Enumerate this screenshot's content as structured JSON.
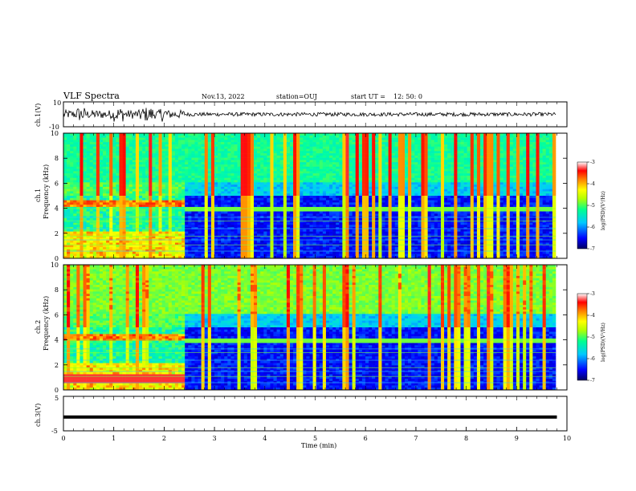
{
  "header": {
    "title": "VLF Spectra",
    "date": "Nov.13, 2022",
    "station": "station=OUJ",
    "start_ut_label": "start  UT  =",
    "start_ut_value": "12: 50: 0"
  },
  "colors": {
    "colormap": [
      "#000080",
      "#0000ff",
      "#00c8ff",
      "#00ffa0",
      "#b4ff00",
      "#ffff00",
      "#ff8000",
      "#ff0000",
      "#ffffff"
    ],
    "trace": "#000000"
  },
  "chart_data": [
    {
      "type": "line",
      "panel": "ch1-waveform",
      "ylabel": "ch.1(V)",
      "ylim": [
        -10,
        10
      ],
      "yticks": [
        "10",
        "-10"
      ],
      "xlim": [
        0,
        10
      ],
      "note_amplitude_v": {
        "t0_to_2.4min": 3.5,
        "t2.4_to_9.8min": 1.5
      }
    },
    {
      "type": "heatmap",
      "panel": "ch1-spectrogram",
      "ylabel_top": "ch.1",
      "ylabel": "Frequency  (kHz)",
      "ylim": [
        0,
        10
      ],
      "yticks": [
        "10",
        "8",
        "6",
        "4",
        "2",
        "0"
      ],
      "xlim": [
        0,
        10
      ],
      "data_end_min": 9.8,
      "regime_change_min": 2.4,
      "colorbar": {
        "label": "log(PSD)(V²/Hz)",
        "ticks": [
          "-3",
          "-4",
          "-5",
          "-6",
          "-7"
        ],
        "range": [
          -7,
          -3
        ]
      }
    },
    {
      "type": "heatmap",
      "panel": "ch2-spectrogram",
      "ylabel_top": "ch.2",
      "ylabel": "Frequency  (kHz)",
      "ylim": [
        0,
        10
      ],
      "yticks": [
        "10",
        "8",
        "6",
        "4",
        "2",
        "0"
      ],
      "xlim": [
        0,
        10
      ],
      "data_end_min": 9.8,
      "regime_change_min": 2.4,
      "colorbar": {
        "label": "log(PSD)(V²/Hz)",
        "ticks": [
          "-3",
          "-4",
          "-5",
          "-6",
          "-7"
        ],
        "range": [
          -7,
          -3
        ]
      }
    },
    {
      "type": "line",
      "panel": "ch3-waveform",
      "ylabel": "ch.3(V)",
      "ylim": [
        -5,
        5
      ],
      "yticks": [
        "5",
        "-5"
      ],
      "value_v": -1,
      "xlim": [
        0,
        10
      ],
      "data_end_min": 9.8,
      "xlabel": "Time  (min)",
      "xticks": [
        "0",
        "1",
        "2",
        "3",
        "4",
        "5",
        "6",
        "7",
        "8",
        "9",
        "10"
      ]
    }
  ]
}
